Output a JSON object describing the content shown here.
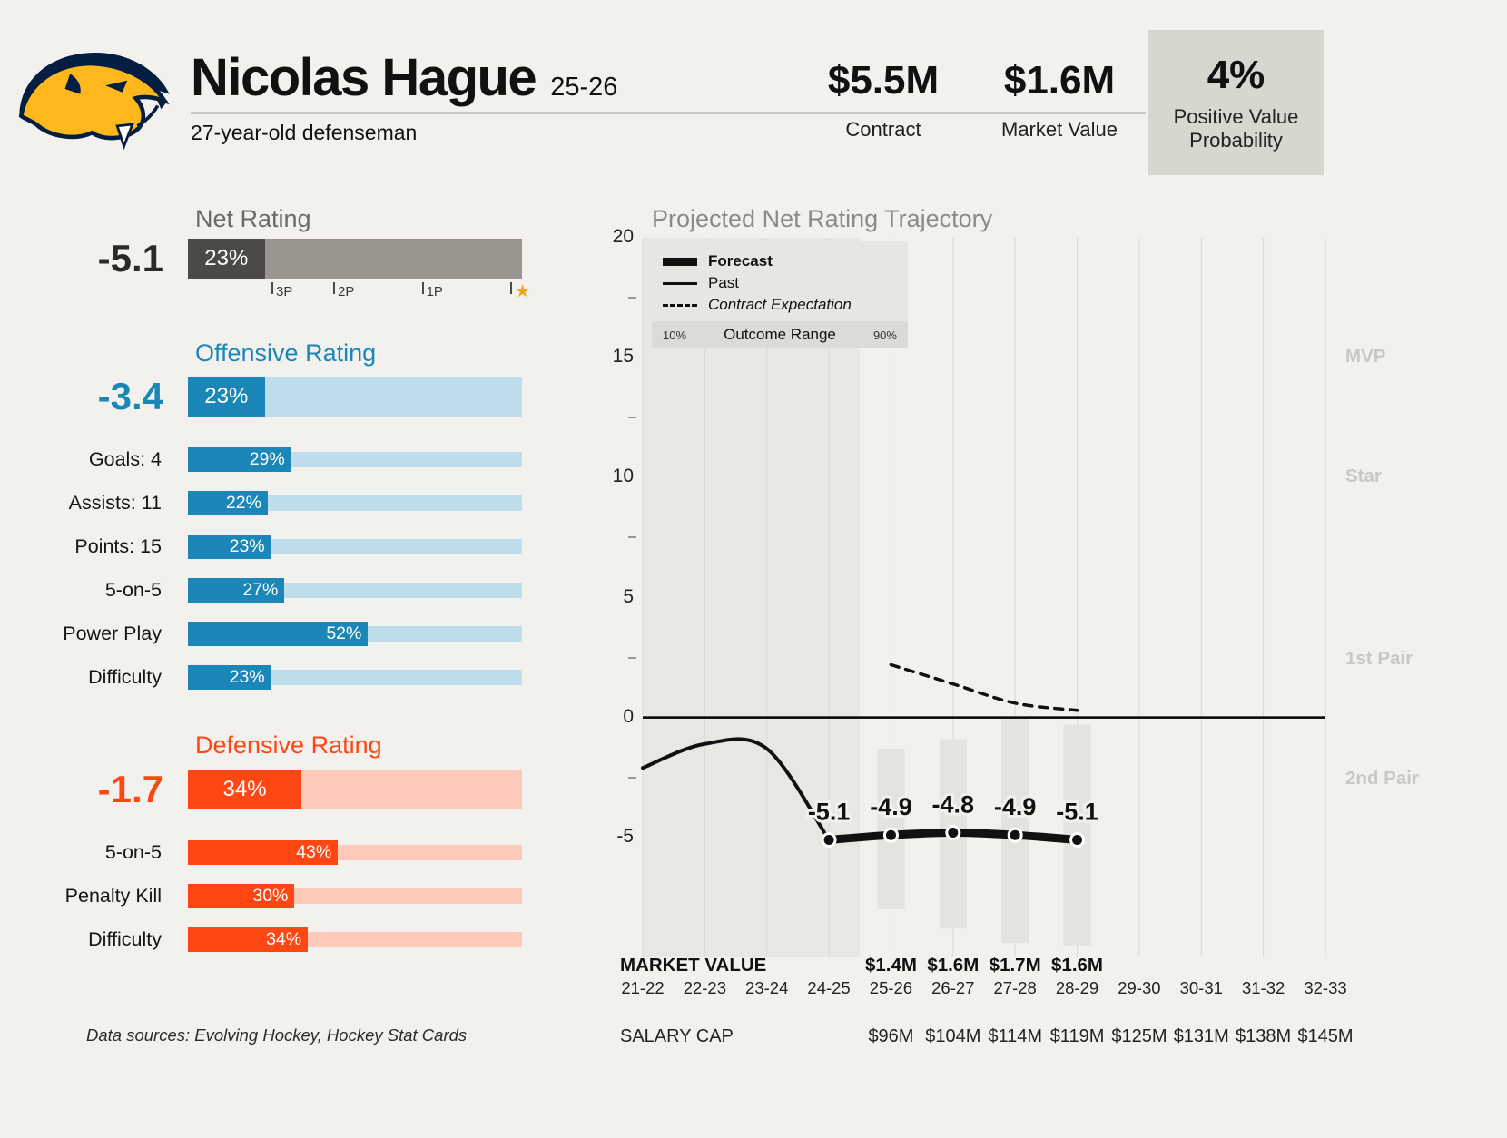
{
  "colors": {
    "background": "#f2f1ed",
    "teal": "#1b87b8",
    "teal_light": "#bfdded",
    "orange": "#ff4713",
    "orange_light": "#ffc9ba",
    "net_dark": "#4b4a47",
    "net_light": "#98968f",
    "prob_box_bg": "#d7d6cf",
    "star": "#f2a41c",
    "past_region": "#e8e7e2",
    "outcome_bar": "#e4e3dd",
    "line_color": "#111111"
  },
  "header": {
    "team_logo": "Nashville Predators",
    "player_name": "Nicolas Hague",
    "season": "25-26",
    "subtitle": "27-year-old defenseman",
    "contract": {
      "value": "$5.5M",
      "label": "Contract"
    },
    "market_value": {
      "value": "$1.6M",
      "label": "Market Value"
    },
    "positive_value": {
      "value": "4%",
      "label": "Positive Value Probability"
    }
  },
  "net_rating": {
    "title": "Net Rating",
    "value": "-5.1",
    "percentile": 23,
    "percentile_label": "23%",
    "markers": [
      {
        "label": "3P",
        "pos": 25
      },
      {
        "label": "2P",
        "pos": 43.5
      },
      {
        "label": "1P",
        "pos": 70
      },
      {
        "label": "★",
        "pos": 96.5,
        "type": "star"
      }
    ]
  },
  "offensive_rating": {
    "title": "Offensive Rating",
    "value": "-3.4",
    "percentile": 23,
    "percentile_label": "23%",
    "rows": [
      {
        "label": "Goals: 4",
        "percentile": 29,
        "percentile_label": "29%"
      },
      {
        "label": "Assists: 11",
        "percentile": 22,
        "percentile_label": "22%"
      },
      {
        "label": "Points: 15",
        "percentile": 23,
        "percentile_label": "23%"
      },
      {
        "label": "5-on-5",
        "percentile": 27,
        "percentile_label": "27%"
      },
      {
        "label": "Power Play",
        "percentile": 52,
        "percentile_label": "52%"
      },
      {
        "label": "Difficulty",
        "percentile": 23,
        "percentile_label": "23%"
      }
    ]
  },
  "defensive_rating": {
    "title": "Defensive Rating",
    "value": "-1.7",
    "percentile": 34,
    "percentile_label": "34%",
    "rows": [
      {
        "label": "5-on-5",
        "percentile": 43,
        "percentile_label": "43%"
      },
      {
        "label": "Penalty Kill",
        "percentile": 30,
        "percentile_label": "30%"
      },
      {
        "label": "Difficulty",
        "percentile": 34,
        "percentile_label": "34%"
      }
    ]
  },
  "footer": {
    "text": "Data sources: Evolving Hockey, Hockey Stat Cards"
  },
  "chart_data": {
    "type": "line",
    "title": "Projected Net Rating Trajectory",
    "x": [
      "21-22",
      "22-23",
      "23-24",
      "24-25",
      "25-26",
      "26-27",
      "27-28",
      "28-29",
      "29-30",
      "30-31",
      "31-32",
      "32-33"
    ],
    "ylim": [
      -10,
      20
    ],
    "yticks": [
      20,
      15,
      10,
      5,
      0,
      -5
    ],
    "minor_ticks": [
      17.5,
      12.5,
      7.5,
      2.5,
      -2.5
    ],
    "zero_line": 0,
    "past_region_end": "24-25",
    "grid": "vertical",
    "legend_position": "top-left",
    "series": [
      {
        "name": "Past",
        "style": "solid-thin",
        "points": [
          [
            "21-22",
            -2.1
          ],
          [
            "22-23",
            -1.1
          ],
          [
            "23-24",
            -1.3
          ],
          [
            "24-25",
            -5.1
          ]
        ]
      },
      {
        "name": "Forecast",
        "style": "solid-thick",
        "points": [
          [
            "24-25",
            -5.1
          ],
          [
            "25-26",
            -4.9
          ],
          [
            "26-27",
            -4.8
          ],
          [
            "27-28",
            -4.9
          ],
          [
            "28-29",
            -5.1
          ]
        ],
        "point_labels": [
          "-5.1",
          "-4.9",
          "-4.8",
          "-4.9",
          "-5.1"
        ]
      },
      {
        "name": "Contract Expectation",
        "style": "dashed",
        "points": [
          [
            "25-26",
            2.2
          ],
          [
            "26-27",
            1.4
          ],
          [
            "27-28",
            0.6
          ],
          [
            "28-29",
            0.3
          ]
        ]
      }
    ],
    "outcome_range": {
      "name": "Outcome Range",
      "low_label": "10%",
      "high_label": "90%",
      "bars": [
        {
          "season": "25-26",
          "high": -1.3,
          "low": -8.0
        },
        {
          "season": "26-27",
          "high": -0.9,
          "low": -8.8
        },
        {
          "season": "27-28",
          "high": 0.0,
          "low": -9.4
        },
        {
          "season": "28-29",
          "high": -0.3,
          "low": -9.5
        }
      ]
    },
    "legend": {
      "forecast": "Forecast",
      "past": "Past",
      "contract": "Contract Expectation",
      "outcome": "Outcome Range",
      "outcome_low": "10%",
      "outcome_high": "90%"
    },
    "band_labels": [
      {
        "label": "MVP",
        "value": 15
      },
      {
        "label": "Star",
        "value": 10
      },
      {
        "label": "1st Pair",
        "value": 2.4
      },
      {
        "label": "2nd Pair",
        "value": -2.6
      }
    ],
    "market_value_row": {
      "label": "MARKET VALUE",
      "values": [
        {
          "season": "25-26",
          "value": "$1.4M"
        },
        {
          "season": "26-27",
          "value": "$1.6M"
        },
        {
          "season": "27-28",
          "value": "$1.7M"
        },
        {
          "season": "28-29",
          "value": "$1.6M"
        }
      ]
    },
    "salary_cap_row": {
      "label": "SALARY CAP",
      "values": [
        {
          "season": "25-26",
          "value": "$96M"
        },
        {
          "season": "26-27",
          "value": "$104M"
        },
        {
          "season": "27-28",
          "value": "$114M"
        },
        {
          "season": "28-29",
          "value": "$119M"
        },
        {
          "season": "29-30",
          "value": "$125M"
        },
        {
          "season": "30-31",
          "value": "$131M"
        },
        {
          "season": "31-32",
          "value": "$138M"
        },
        {
          "season": "32-33",
          "value": "$145M"
        }
      ]
    }
  }
}
